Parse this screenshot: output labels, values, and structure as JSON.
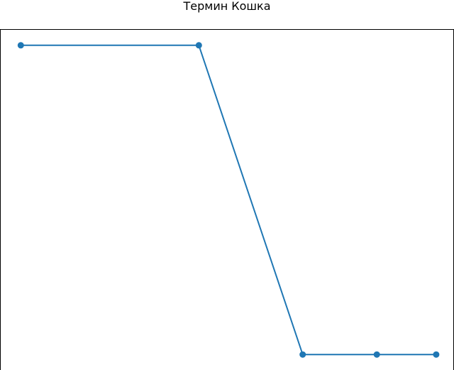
{
  "chart_data": {
    "type": "line",
    "title": "Термин Кошка",
    "xlabel": "",
    "ylabel": "",
    "x": [
      0,
      1.2,
      1.9,
      2.4,
      2.8
    ],
    "series": [
      {
        "values": [
          1,
          1,
          0,
          0,
          0
        ],
        "color": "#1f77b4",
        "marker": "circle"
      }
    ],
    "ylim": [
      -0.05,
      1.05
    ],
    "xlim": [
      -0.14,
      2.92
    ],
    "grid": false,
    "axes_visible": false
  }
}
